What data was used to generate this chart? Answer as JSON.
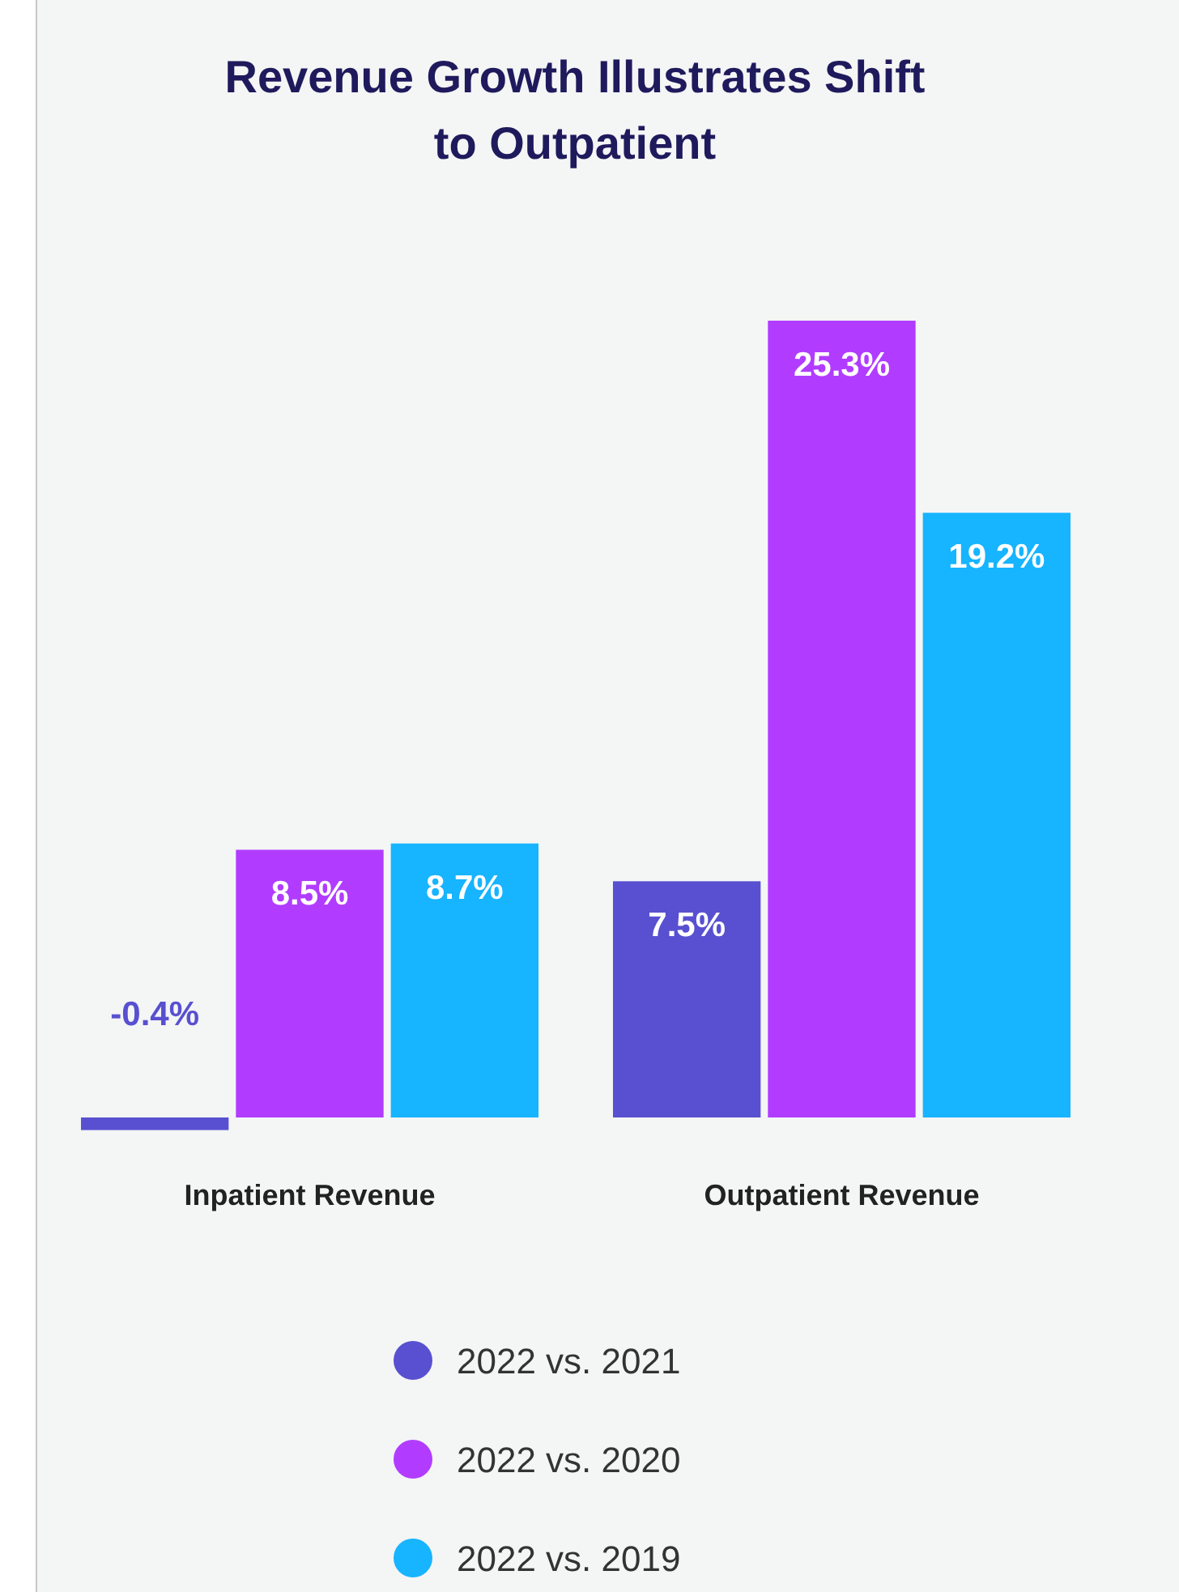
{
  "chart_data": {
    "type": "bar",
    "title": "Revenue Growth Illustrates Shift to Outpatient",
    "categories": [
      "Inpatient Revenue",
      "Outpatient Revenue"
    ],
    "series": [
      {
        "name": "2022 vs. 2021",
        "color": "#5850d0",
        "values": [
          -0.4,
          7.5
        ],
        "value_labels": [
          "-0.4%",
          "7.5%"
        ]
      },
      {
        "name": "2022 vs. 2020",
        "color": "#b13cff",
        "values": [
          8.5,
          25.3
        ],
        "value_labels": [
          "8.5%",
          "25.3%"
        ]
      },
      {
        "name": "2022 vs. 2019",
        "color": "#17b4ff",
        "values": [
          8.7,
          19.2
        ],
        "value_labels": [
          "8.7%",
          "19.2%"
        ]
      }
    ],
    "legend": "bottom",
    "grid": false
  }
}
